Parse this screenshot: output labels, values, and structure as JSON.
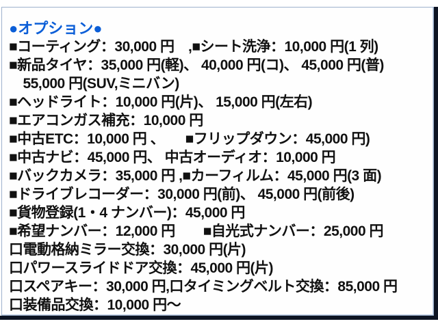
{
  "colors": {
    "accent_blue": "#0b5ed7",
    "body_text": "#111111",
    "card_border": "#9db1cc",
    "photo_edge_dark": "#0d1423",
    "background": "#ffffff"
  },
  "document": {
    "title": "●オプション●",
    "lines": [
      "■コーティング：30,000 円　,■シート洗浄：10,000 円(1 列)",
      "■新品タイヤ：35,000 円(軽)、 40,000 円(コ)、 45,000 円(普)",
      "　55,000 円(SUV,ミニバン)",
      "■ヘッドライト：10,000 円(片)、 15,000 円(左右)",
      "■エアコンガス補充：10,000 円",
      "■中古ETC：10,000 円 、　　■フリップダウン：45,000 円)",
      "■中古ナビ：45,000 円、 中古オーディオ：10,000 円",
      "■バックカメラ：35,000 円 ,■カーフィルム：45,000 円(3 面)",
      "■ドライブレコーダー：30,000 円(前)、 45,000 円(前後)",
      "■貨物登録(1・4 ナンバー)：45,000 円",
      "■希望ナンバー：12,000 円　　■自光式ナンバー：25,000 円",
      "口電動格納ミラー交換：30,000 円(片)",
      "口パワースライドドア交換：45,000 円(片)",
      "口スペアキー：30,000 円,口タイミングベルト交換：85,000 円",
      "口装備品交換：10,000 円～"
    ]
  }
}
